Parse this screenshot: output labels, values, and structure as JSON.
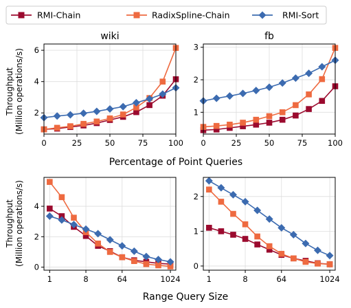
{
  "legend": [
    {
      "name": "RMI-Chain",
      "color": "#9b0a2e",
      "marker": "square"
    },
    {
      "name": "RadixSpline-Chain",
      "color": "#ee6a40",
      "marker": "square"
    },
    {
      "name": "RMI-Sort",
      "color": "#3c6bb0",
      "marker": "diamond"
    }
  ],
  "shared_labels": {
    "top_xlabel": "Percentage of Point Queries",
    "bottom_xlabel": "Range Query Size",
    "ylabel_line1": "Throughput",
    "ylabel_line2": "(Million operations/s)"
  },
  "chart_data": [
    {
      "type": "line",
      "title": "wiki",
      "xlabel": "",
      "ylabel": "Throughput (Million operations/s)",
      "x": [
        0,
        10,
        20,
        30,
        40,
        50,
        60,
        70,
        80,
        90,
        100
      ],
      "xlim": [
        0,
        100
      ],
      "xticks": [
        "0",
        "25",
        "50",
        "75",
        "100"
      ],
      "xtick_values": [
        0,
        25,
        50,
        75,
        100
      ],
      "ylim": [
        0.65,
        6.4
      ],
      "yticks": [
        "2",
        "4",
        "6"
      ],
      "ytick_values": [
        2,
        4,
        6
      ],
      "grid": true,
      "series": [
        {
          "name": "RMI-Chain",
          "values": [
            0.95,
            1.0,
            1.1,
            1.2,
            1.35,
            1.55,
            1.75,
            2.05,
            2.5,
            3.1,
            4.15
          ]
        },
        {
          "name": "RadixSpline-Chain",
          "values": [
            0.95,
            1.05,
            1.15,
            1.3,
            1.45,
            1.65,
            1.9,
            2.35,
            2.95,
            4.0,
            6.15
          ]
        },
        {
          "name": "RMI-Sort",
          "values": [
            1.7,
            1.8,
            1.88,
            1.98,
            2.1,
            2.25,
            2.4,
            2.65,
            2.9,
            3.2,
            3.6
          ]
        }
      ]
    },
    {
      "type": "line",
      "title": "fb",
      "xlabel": "",
      "ylabel": "",
      "x": [
        0,
        10,
        20,
        30,
        40,
        50,
        60,
        70,
        80,
        90,
        100
      ],
      "xlim": [
        0,
        100
      ],
      "xticks": [
        "0",
        "25",
        "50",
        "75",
        "100"
      ],
      "xtick_values": [
        0,
        25,
        50,
        75,
        100
      ],
      "ylim": [
        0.33,
        3.1
      ],
      "yticks": [
        "1",
        "2",
        "3"
      ],
      "ytick_values": [
        1,
        2,
        3
      ],
      "grid": true,
      "series": [
        {
          "name": "RMI-Chain",
          "values": [
            0.45,
            0.47,
            0.52,
            0.57,
            0.62,
            0.68,
            0.77,
            0.9,
            1.1,
            1.35,
            1.8
          ]
        },
        {
          "name": "RadixSpline-Chain",
          "values": [
            0.55,
            0.58,
            0.62,
            0.68,
            0.77,
            0.88,
            1.0,
            1.22,
            1.55,
            2.02,
            2.98
          ]
        },
        {
          "name": "RMI-Sort",
          "values": [
            1.35,
            1.43,
            1.5,
            1.58,
            1.67,
            1.77,
            1.9,
            2.05,
            2.2,
            2.4,
            2.6
          ]
        }
      ]
    },
    {
      "type": "line",
      "title": "",
      "xlabel": "Range Query Size",
      "ylabel": "Throughput (Million operations/s)",
      "xscale": "log2",
      "x": [
        1,
        2,
        4,
        8,
        16,
        32,
        64,
        128,
        256,
        512,
        1024
      ],
      "xlim": [
        0.72,
        1400
      ],
      "xticks": [
        "1",
        "8",
        "64",
        "1024"
      ],
      "xtick_values": [
        1,
        8,
        64,
        1024
      ],
      "ylim": [
        -0.2,
        5.9
      ],
      "yticks": [
        "0",
        "2",
        "4"
      ],
      "ytick_values": [
        0,
        2,
        4
      ],
      "grid": true,
      "series": [
        {
          "name": "RMI-Chain",
          "values": [
            3.85,
            3.35,
            2.65,
            2.05,
            1.4,
            1.05,
            0.65,
            0.45,
            0.35,
            0.25,
            0.2
          ]
        },
        {
          "name": "RadixSpline-Chain",
          "values": [
            5.6,
            4.6,
            3.25,
            2.3,
            1.55,
            1.0,
            0.65,
            0.4,
            0.2,
            0.12,
            0.05
          ]
        },
        {
          "name": "RMI-Sort",
          "values": [
            3.35,
            3.1,
            2.8,
            2.5,
            2.2,
            1.8,
            1.4,
            1.05,
            0.7,
            0.5,
            0.35
          ]
        }
      ]
    },
    {
      "type": "line",
      "title": "",
      "xlabel": "Range Query Size",
      "ylabel": "",
      "xscale": "log2",
      "x": [
        1,
        2,
        4,
        8,
        16,
        32,
        64,
        128,
        256,
        512,
        1024
      ],
      "xlim": [
        0.72,
        1400
      ],
      "xticks": [
        "1",
        "8",
        "64",
        "1024"
      ],
      "xtick_values": [
        1,
        8,
        64,
        1024
      ],
      "ylim": [
        -0.12,
        2.55
      ],
      "yticks": [
        "0",
        "1",
        "2"
      ],
      "ytick_values": [
        0,
        1,
        2
      ],
      "grid": true,
      "series": [
        {
          "name": "RMI-Chain",
          "values": [
            1.1,
            1.0,
            0.9,
            0.78,
            0.62,
            0.47,
            0.32,
            0.22,
            0.15,
            0.08,
            0.05
          ]
        },
        {
          "name": "RadixSpline-Chain",
          "values": [
            2.2,
            1.85,
            1.5,
            1.2,
            0.85,
            0.57,
            0.35,
            0.22,
            0.12,
            0.07,
            0.05
          ]
        },
        {
          "name": "RMI-Sort",
          "values": [
            2.45,
            2.25,
            2.05,
            1.85,
            1.6,
            1.35,
            1.1,
            0.9,
            0.65,
            0.45,
            0.3
          ]
        }
      ]
    }
  ]
}
